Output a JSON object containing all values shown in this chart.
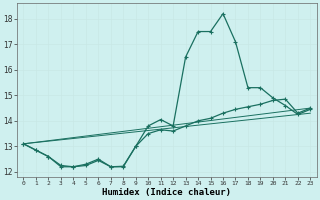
{
  "xlabel": "Humidex (Indice chaleur)",
  "bg_color": "#cff0ef",
  "grid_color": "#c8e8e6",
  "line_color": "#1a7060",
  "xlim": [
    -0.5,
    23.5
  ],
  "ylim": [
    11.8,
    18.6
  ],
  "yticks": [
    12,
    13,
    14,
    15,
    16,
    17,
    18
  ],
  "xticks": [
    0,
    1,
    2,
    3,
    4,
    5,
    6,
    7,
    8,
    9,
    10,
    11,
    12,
    13,
    14,
    15,
    16,
    17,
    18,
    19,
    20,
    21,
    22,
    23
  ],
  "line1_x": [
    0,
    1,
    2,
    3,
    4,
    5,
    6,
    7,
    8,
    9,
    10,
    11,
    12,
    13,
    14,
    15,
    16,
    17,
    18,
    19,
    20,
    21,
    22,
    23
  ],
  "line1_y": [
    13.1,
    12.85,
    12.6,
    12.2,
    12.2,
    12.3,
    12.5,
    12.2,
    12.2,
    13.0,
    13.8,
    14.05,
    13.8,
    16.5,
    17.5,
    17.5,
    18.2,
    17.1,
    15.3,
    15.3,
    14.9,
    14.6,
    14.25,
    14.45
  ],
  "line2_x": [
    0,
    1,
    2,
    3,
    4,
    5,
    6,
    7,
    8,
    9,
    10,
    11,
    12,
    13,
    14,
    15,
    16,
    17,
    18,
    19,
    20,
    21,
    22,
    23
  ],
  "line2_y": [
    13.1,
    12.85,
    12.6,
    12.25,
    12.2,
    12.25,
    12.45,
    12.2,
    12.22,
    13.0,
    13.5,
    13.65,
    13.6,
    13.8,
    14.0,
    14.1,
    14.3,
    14.45,
    14.55,
    14.65,
    14.8,
    14.85,
    14.3,
    14.5
  ],
  "line3_x": [
    0,
    23
  ],
  "line3_y": [
    13.1,
    14.5
  ],
  "line4_x": [
    0,
    23
  ],
  "line4_y": [
    13.1,
    14.3
  ]
}
